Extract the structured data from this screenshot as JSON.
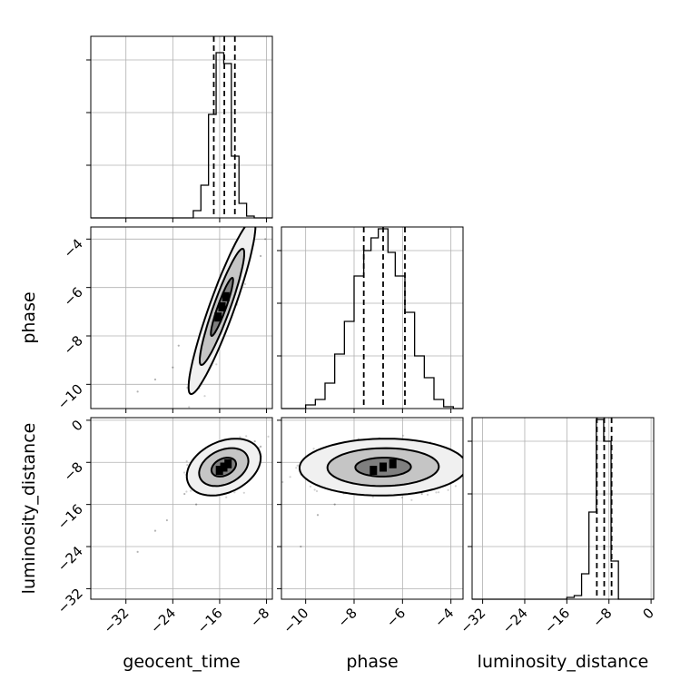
{
  "chart_data": {
    "type": "corner",
    "parameters": [
      "geocent_time",
      "phase",
      "luminosity_distance"
    ],
    "ranges": {
      "geocent_time": [
        -38,
        -7
      ],
      "phase": [
        -11,
        -3.5
      ],
      "luminosity_distance": [
        -34,
        0.5
      ]
    },
    "ticks": {
      "geocent_time": [
        -32,
        -24,
        -16,
        -8
      ],
      "phase": [
        -10,
        -8,
        -6,
        -4
      ],
      "luminosity_distance": [
        -32,
        -24,
        -16,
        -8,
        0
      ]
    },
    "tick_labels": {
      "geocent_time": [
        "−32",
        "−24",
        "−16",
        "−8"
      ],
      "phase": [
        "−10",
        "−8",
        "−6",
        "−4"
      ],
      "luminosity_distance": [
        "−32",
        "−24",
        "−16",
        "−8",
        "0"
      ]
    },
    "hist_ticks": [
      0.29,
      0.58,
      0.87
    ],
    "quantile_lines": {
      "geocent_time": [
        -17.0,
        -15.2,
        -13.4
      ],
      "phase": [
        -7.6,
        -6.8,
        -5.9
      ],
      "luminosity_distance": [
        -10.3,
        -8.9,
        -7.5
      ]
    },
    "histograms": {
      "geocent_time": {
        "edges": [
          -20.5,
          -19.2,
          -17.9,
          -16.6,
          -15.3,
          -14.0,
          -12.7,
          -11.4,
          -10.1,
          -8.8
        ],
        "values": [
          0.04,
          0.18,
          0.57,
          0.91,
          0.85,
          0.34,
          0.08,
          0.01,
          0.0
        ]
      },
      "phase": {
        "edges": [
          -10.0,
          -9.6,
          -9.2,
          -8.8,
          -8.4,
          -8.0,
          -7.6,
          -7.3,
          -7.0,
          -6.6,
          -6.3,
          -5.9,
          -5.5,
          -5.1,
          -4.7,
          -4.3,
          -3.9
        ],
        "values": [
          0.02,
          0.05,
          0.14,
          0.3,
          0.48,
          0.73,
          0.87,
          0.94,
          0.99,
          0.86,
          0.73,
          0.53,
          0.29,
          0.17,
          0.05,
          0.01
        ]
      },
      "luminosity_distance": {
        "edges": [
          -16.0,
          -14.6,
          -13.2,
          -11.8,
          -10.4,
          -9.0,
          -7.6,
          -6.2,
          -4.8
        ],
        "values": [
          0.01,
          0.02,
          0.14,
          0.48,
          0.99,
          0.87,
          0.21,
          0.0
        ]
      }
    },
    "scatter_pairs": [
      {
        "x": "geocent_time",
        "y": "phase",
        "mean": [
          -15.6,
          -6.8
        ],
        "std": [
          1.9,
          1.2
        ],
        "rho": 0.92,
        "outliers": [
          [
            -30,
            -10.3
          ],
          [
            -27,
            -9.8
          ],
          [
            -24,
            -9.3
          ],
          [
            -9,
            -4.7
          ],
          [
            -11,
            -4.3
          ],
          [
            -23,
            -8.4
          ],
          [
            -8.2,
            -4.0
          ]
        ],
        "contours": [
          {
            "level": 0.393,
            "fill": "#7f7f7f"
          },
          {
            "level": 0.865,
            "fill": "#c5c5c5"
          },
          {
            "level": 0.989,
            "fill": "#f0f0f0"
          }
        ]
      },
      {
        "x": "geocent_time",
        "y": "luminosity_distance",
        "mean": [
          -15.3,
          -8.9
        ],
        "std": [
          2.1,
          1.8
        ],
        "rho": 0.32,
        "outliers": [
          [
            -30,
            -25
          ],
          [
            -27,
            -21
          ],
          [
            -25,
            -19
          ],
          [
            -20,
            -16
          ],
          [
            -9,
            -5
          ],
          [
            -10,
            -4
          ],
          [
            -22,
            -14
          ],
          [
            -18,
            -13
          ]
        ],
        "contours": [
          {
            "level": 0.393,
            "fill": "#7f7f7f"
          },
          {
            "level": 0.865,
            "fill": "#c5c5c5"
          },
          {
            "level": 0.989,
            "fill": "#f0f0f0"
          }
        ]
      },
      {
        "x": "phase",
        "y": "luminosity_distance",
        "mean": [
          -6.8,
          -8.9
        ],
        "std": [
          1.15,
          1.8
        ],
        "rho": 0.03,
        "outliers": [
          [
            -10.2,
            -24
          ],
          [
            -9.5,
            -18
          ],
          [
            -4.6,
            -4.8
          ],
          [
            -8.8,
            -16
          ],
          [
            -5.2,
            -14
          ]
        ],
        "contours": [
          {
            "level": 0.393,
            "fill": "#7f7f7f"
          },
          {
            "level": 0.865,
            "fill": "#c5c5c5"
          },
          {
            "level": 0.989,
            "fill": "#f0f0f0"
          }
        ]
      }
    ],
    "grid": true,
    "colors": {
      "hist_line": "#000000",
      "quantile_line": "#000000",
      "scatter": "#000000",
      "grid": "#b0b0b0",
      "axes": "#000000"
    }
  }
}
